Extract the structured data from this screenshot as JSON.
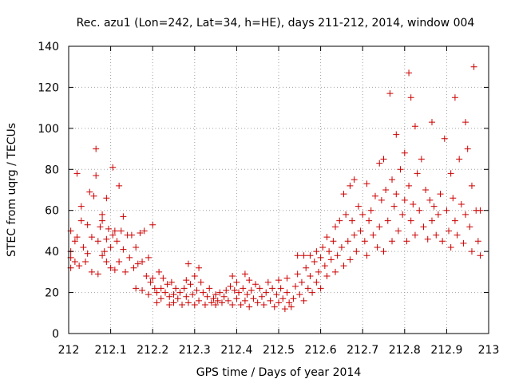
{
  "chart_data": {
    "type": "scatter",
    "title": "Rec. azu1 (Lon=242, Lat=34, h=HE), days 211-212, 2014, window 004",
    "xlabel": "GPS time / Days of year 2014",
    "ylabel": "STEC from uqrg / TECUs",
    "xlim": [
      212,
      213
    ],
    "ylim": [
      0,
      140
    ],
    "xticks": [
      "212",
      "212.1",
      "212.2",
      "212.3",
      "212.4",
      "212.5",
      "212.6",
      "212.7",
      "212.8",
      "212.9",
      "213"
    ],
    "yticks": [
      "0",
      "20",
      "40",
      "60",
      "80",
      "100",
      "120",
      "140"
    ],
    "grid": true,
    "marker": "plus",
    "color": "#cc0000",
    "points": [
      [
        212.005,
        50
      ],
      [
        212.005,
        40
      ],
      [
        212.005,
        37
      ],
      [
        212.005,
        32
      ],
      [
        212.015,
        45
      ],
      [
        212.015,
        35
      ],
      [
        212.02,
        78
      ],
      [
        212.02,
        47
      ],
      [
        212.025,
        33
      ],
      [
        212.03,
        62
      ],
      [
        212.03,
        55
      ],
      [
        212.035,
        42
      ],
      [
        212.04,
        35
      ],
      [
        212.045,
        53
      ],
      [
        212.045,
        39
      ],
      [
        212.05,
        69
      ],
      [
        212.055,
        47
      ],
      [
        212.055,
        30
      ],
      [
        212.06,
        67
      ],
      [
        212.065,
        90
      ],
      [
        212.065,
        77
      ],
      [
        212.07,
        45
      ],
      [
        212.07,
        29
      ],
      [
        212.075,
        52
      ],
      [
        212.08,
        58
      ],
      [
        212.08,
        55
      ],
      [
        212.08,
        38
      ],
      [
        212.085,
        40
      ],
      [
        212.09,
        66
      ],
      [
        212.09,
        46
      ],
      [
        212.09,
        35
      ],
      [
        212.095,
        51
      ],
      [
        212.1,
        42
      ],
      [
        212.1,
        32
      ],
      [
        212.105,
        81
      ],
      [
        212.105,
        48
      ],
      [
        212.11,
        50
      ],
      [
        212.11,
        31
      ],
      [
        212.115,
        45
      ],
      [
        212.12,
        72
      ],
      [
        212.12,
        35
      ],
      [
        212.125,
        50
      ],
      [
        212.13,
        57
      ],
      [
        212.13,
        41
      ],
      [
        212.135,
        30
      ],
      [
        212.14,
        48
      ],
      [
        212.145,
        37
      ],
      [
        212.15,
        48
      ],
      [
        212.155,
        32
      ],
      [
        212.16,
        42
      ],
      [
        212.16,
        22
      ],
      [
        212.165,
        34
      ],
      [
        212.17,
        49
      ],
      [
        212.175,
        35
      ],
      [
        212.175,
        21
      ],
      [
        212.18,
        50
      ],
      [
        212.185,
        28
      ],
      [
        212.19,
        37
      ],
      [
        212.19,
        19
      ],
      [
        212.195,
        25
      ],
      [
        212.2,
        53
      ],
      [
        212.2,
        27
      ],
      [
        212.205,
        22
      ],
      [
        212.21,
        20
      ],
      [
        212.21,
        15
      ],
      [
        212.215,
        30
      ],
      [
        212.22,
        22
      ],
      [
        212.22,
        17
      ],
      [
        212.225,
        27
      ],
      [
        212.23,
        20
      ],
      [
        212.235,
        24
      ],
      [
        212.24,
        18
      ],
      [
        212.24,
        14
      ],
      [
        212.245,
        25
      ],
      [
        212.25,
        19
      ],
      [
        212.25,
        15
      ],
      [
        212.255,
        22
      ],
      [
        212.26,
        17
      ],
      [
        212.265,
        20
      ],
      [
        212.27,
        14
      ],
      [
        212.275,
        22
      ],
      [
        212.28,
        26
      ],
      [
        212.28,
        18
      ],
      [
        212.285,
        34
      ],
      [
        212.285,
        15
      ],
      [
        212.29,
        24
      ],
      [
        212.295,
        19
      ],
      [
        212.3,
        28
      ],
      [
        212.3,
        14
      ],
      [
        212.305,
        21
      ],
      [
        212.31,
        32
      ],
      [
        212.31,
        16
      ],
      [
        212.315,
        25
      ],
      [
        212.32,
        20
      ],
      [
        212.325,
        14
      ],
      [
        212.33,
        18
      ],
      [
        212.335,
        22
      ],
      [
        212.34,
        15
      ],
      [
        212.345,
        17
      ],
      [
        212.35,
        19
      ],
      [
        212.35,
        14
      ],
      [
        212.355,
        16
      ],
      [
        212.36,
        20
      ],
      [
        212.365,
        15
      ],
      [
        212.37,
        18
      ],
      [
        212.375,
        21
      ],
      [
        212.38,
        16
      ],
      [
        212.385,
        23
      ],
      [
        212.39,
        28
      ],
      [
        212.39,
        14
      ],
      [
        212.395,
        21
      ],
      [
        212.4,
        25
      ],
      [
        212.4,
        17
      ],
      [
        212.405,
        20
      ],
      [
        212.41,
        14
      ],
      [
        212.415,
        22
      ],
      [
        212.42,
        29
      ],
      [
        212.42,
        16
      ],
      [
        212.425,
        19
      ],
      [
        212.43,
        26
      ],
      [
        212.43,
        13
      ],
      [
        212.435,
        21
      ],
      [
        212.44,
        17
      ],
      [
        212.445,
        24
      ],
      [
        212.45,
        15
      ],
      [
        212.455,
        22
      ],
      [
        212.46,
        18
      ],
      [
        212.465,
        14
      ],
      [
        212.47,
        20
      ],
      [
        212.475,
        25
      ],
      [
        212.48,
        16
      ],
      [
        212.485,
        22
      ],
      [
        212.49,
        13
      ],
      [
        212.495,
        19
      ],
      [
        212.5,
        26
      ],
      [
        212.5,
        15
      ],
      [
        212.505,
        22
      ],
      [
        212.51,
        17
      ],
      [
        212.515,
        12
      ],
      [
        212.52,
        27
      ],
      [
        212.52,
        20
      ],
      [
        212.525,
        15
      ],
      [
        212.53,
        13
      ],
      [
        212.535,
        17
      ],
      [
        212.54,
        23
      ],
      [
        212.545,
        38
      ],
      [
        212.545,
        29
      ],
      [
        212.55,
        19
      ],
      [
        212.555,
        25
      ],
      [
        212.56,
        38
      ],
      [
        212.56,
        16
      ],
      [
        212.565,
        32
      ],
      [
        212.57,
        22
      ],
      [
        212.575,
        38
      ],
      [
        212.575,
        28
      ],
      [
        212.58,
        20
      ],
      [
        212.585,
        35
      ],
      [
        212.59,
        40
      ],
      [
        212.59,
        25
      ],
      [
        212.595,
        30
      ],
      [
        212.6,
        37
      ],
      [
        212.6,
        22
      ],
      [
        212.605,
        42
      ],
      [
        212.61,
        33
      ],
      [
        212.615,
        47
      ],
      [
        212.615,
        28
      ],
      [
        212.62,
        40
      ],
      [
        212.625,
        36
      ],
      [
        212.63,
        45
      ],
      [
        212.635,
        52
      ],
      [
        212.635,
        30
      ],
      [
        212.64,
        38
      ],
      [
        212.645,
        55
      ],
      [
        212.65,
        42
      ],
      [
        212.655,
        68
      ],
      [
        212.655,
        33
      ],
      [
        212.66,
        58
      ],
      [
        212.665,
        45
      ],
      [
        212.67,
        72
      ],
      [
        212.67,
        36
      ],
      [
        212.675,
        55
      ],
      [
        212.68,
        75
      ],
      [
        212.68,
        48
      ],
      [
        212.685,
        40
      ],
      [
        212.69,
        62
      ],
      [
        212.695,
        50
      ],
      [
        212.7,
        58
      ],
      [
        212.705,
        45
      ],
      [
        212.71,
        73
      ],
      [
        212.71,
        38
      ],
      [
        212.715,
        55
      ],
      [
        212.72,
        60
      ],
      [
        212.725,
        48
      ],
      [
        212.73,
        67
      ],
      [
        212.735,
        42
      ],
      [
        212.74,
        83
      ],
      [
        212.74,
        52
      ],
      [
        212.745,
        65
      ],
      [
        212.75,
        85
      ],
      [
        212.75,
        40
      ],
      [
        212.755,
        70
      ],
      [
        212.76,
        55
      ],
      [
        212.765,
        117
      ],
      [
        212.77,
        75
      ],
      [
        212.77,
        45
      ],
      [
        212.775,
        62
      ],
      [
        212.78,
        97
      ],
      [
        212.78,
        68
      ],
      [
        212.785,
        50
      ],
      [
        212.79,
        80
      ],
      [
        212.795,
        58
      ],
      [
        212.8,
        88
      ],
      [
        212.8,
        65
      ],
      [
        212.805,
        45
      ],
      [
        212.81,
        127
      ],
      [
        212.81,
        72
      ],
      [
        212.815,
        115
      ],
      [
        212.815,
        55
      ],
      [
        212.82,
        63
      ],
      [
        212.825,
        101
      ],
      [
        212.825,
        48
      ],
      [
        212.83,
        78
      ],
      [
        212.835,
        60
      ],
      [
        212.84,
        85
      ],
      [
        212.845,
        52
      ],
      [
        212.85,
        70
      ],
      [
        212.855,
        46
      ],
      [
        212.86,
        65
      ],
      [
        212.865,
        103
      ],
      [
        212.865,
        55
      ],
      [
        212.87,
        62
      ],
      [
        212.875,
        48
      ],
      [
        212.88,
        58
      ],
      [
        212.885,
        68
      ],
      [
        212.89,
        45
      ],
      [
        212.895,
        95
      ],
      [
        212.9,
        60
      ],
      [
        212.905,
        50
      ],
      [
        212.91,
        78
      ],
      [
        212.91,
        42
      ],
      [
        212.915,
        66
      ],
      [
        212.92,
        115
      ],
      [
        212.92,
        55
      ],
      [
        212.925,
        48
      ],
      [
        212.93,
        85
      ],
      [
        212.935,
        63
      ],
      [
        212.94,
        44
      ],
      [
        212.945,
        103
      ],
      [
        212.945,
        58
      ],
      [
        212.95,
        90
      ],
      [
        212.955,
        52
      ],
      [
        212.96,
        72
      ],
      [
        212.96,
        40
      ],
      [
        212.965,
        130
      ],
      [
        212.97,
        60
      ],
      [
        212.975,
        45
      ],
      [
        212.98,
        60
      ],
      [
        212.98,
        38
      ]
    ]
  }
}
